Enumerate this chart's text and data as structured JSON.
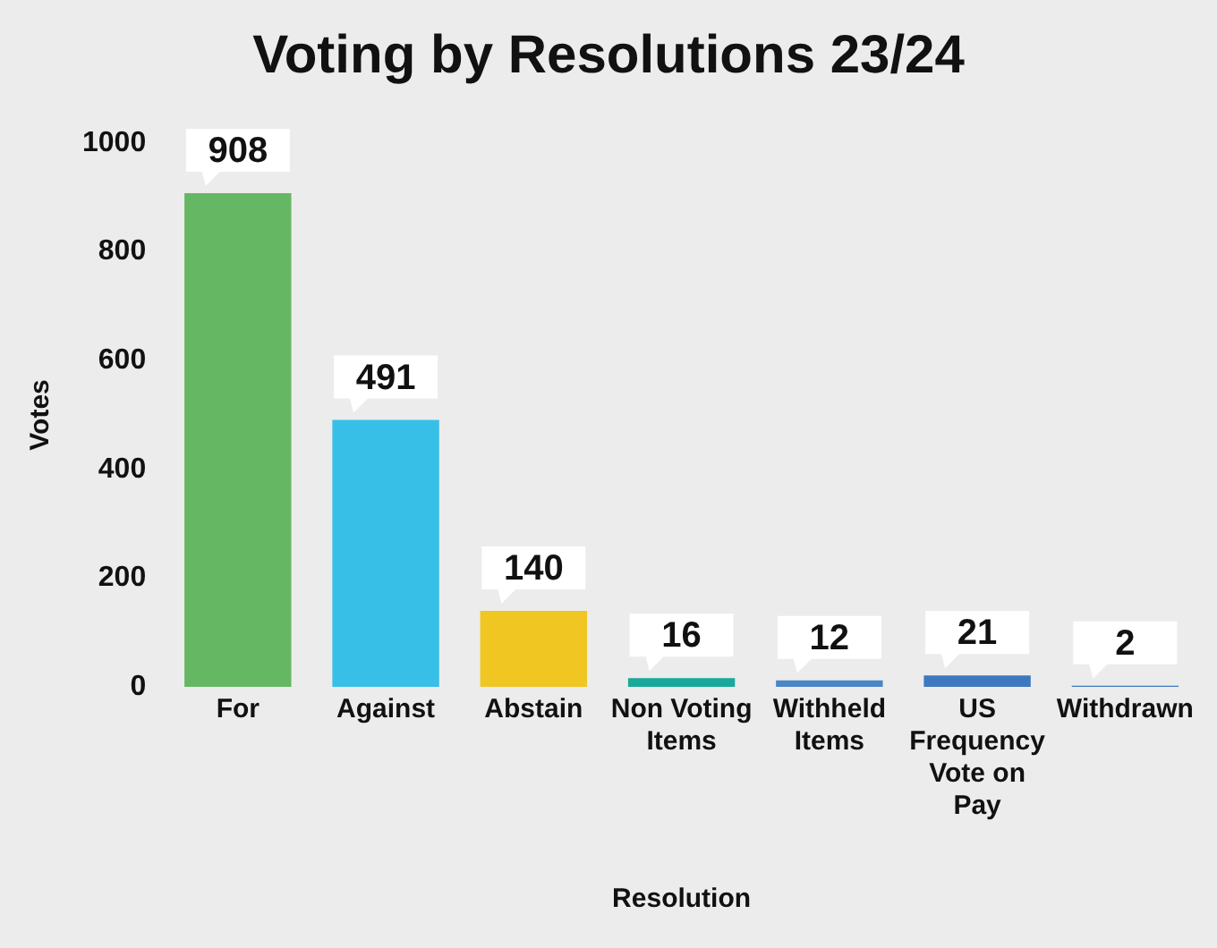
{
  "chart_data": {
    "type": "bar",
    "title": "Voting by Resolutions 23/24",
    "xlabel": "Resolution",
    "ylabel": "Votes",
    "categories": [
      "For",
      "Against",
      "Abstain",
      "Non Voting Items",
      "Withheld Items",
      "US Frequency Vote on Pay",
      "Withdrawn"
    ],
    "values": [
      908,
      491,
      140,
      16,
      12,
      21,
      2
    ],
    "colors": [
      "#66b764",
      "#38bfe8",
      "#f0c622",
      "#19a99b",
      "#4a86c5",
      "#3f78be",
      "#3f78be"
    ],
    "ylim": [
      0,
      1000
    ],
    "yticks": [
      0,
      200,
      400,
      600,
      800,
      1000
    ],
    "grid": false,
    "legend": false,
    "data_labels": true
  }
}
